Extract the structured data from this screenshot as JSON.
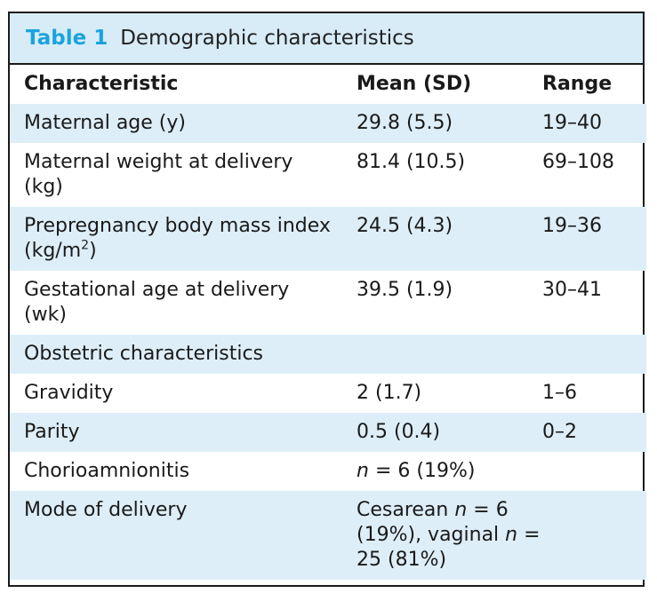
{
  "caption": {
    "label": "Table 1",
    "text": "Demographic characteristics"
  },
  "headers": {
    "characteristic": "Characteristic",
    "mean_sd": "Mean (SD)",
    "range": "Range"
  },
  "rows": [
    {
      "characteristic": "Maternal age (y)",
      "mean_sd": "29.8 (5.5)",
      "range": "19–40"
    },
    {
      "characteristic": "Maternal weight at delivery (kg)",
      "mean_sd": "81.4 (10.5)",
      "range": "69–108"
    },
    {
      "characteristic_main": "Prepregnancy body mass index (kg/m",
      "characteristic_sup": "2",
      "characteristic_end": ")",
      "mean_sd": "24.5 (4.3)",
      "range": "19–36"
    },
    {
      "characteristic": "Gestational age at delivery (wk)",
      "mean_sd": "39.5 (1.9)",
      "range": "30–41"
    },
    {
      "characteristic": "Obstetric characteristics",
      "mean_sd": "",
      "range": ""
    },
    {
      "characteristic": "Gravidity",
      "mean_sd": "2 (1.7)",
      "range": "1–6"
    },
    {
      "characteristic": "Parity",
      "mean_sd": "0.5 (0.4)",
      "range": "0–2"
    },
    {
      "characteristic": "Chorioamnionitis",
      "mean_sd_n": "n",
      "mean_sd_rest": " = 6 (19%)",
      "range": ""
    },
    {
      "characteristic": "Mode of delivery",
      "mean_sd_a": "Cesarean ",
      "mean_sd_n1": "n",
      "mean_sd_b": " = 6 (19%), vaginal ",
      "mean_sd_n2": "n",
      "mean_sd_c": " = 25 (81%)",
      "range": ""
    }
  ]
}
